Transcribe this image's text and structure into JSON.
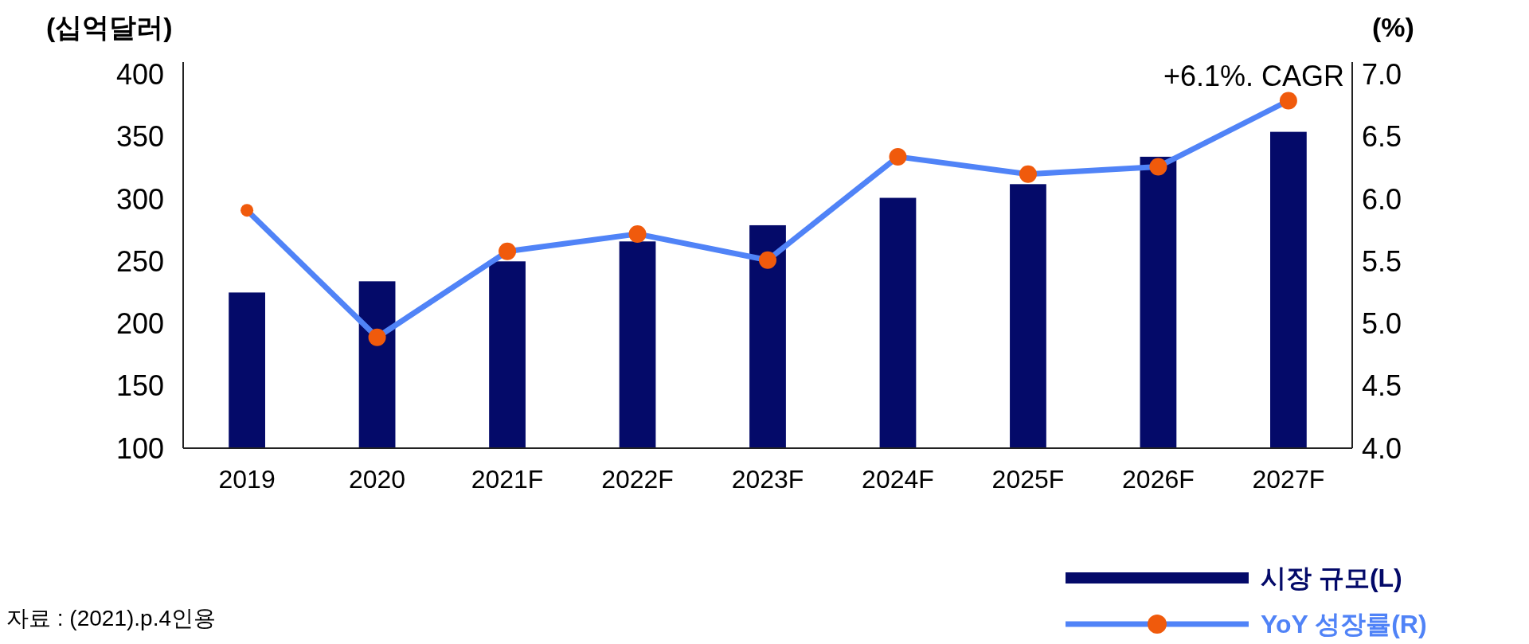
{
  "chart_data": {
    "type": "bar",
    "ylabel": "(십억달러)",
    "y2label": "(%)",
    "categories": [
      "2019",
      "2020",
      "2021F",
      "2022F",
      "2023F",
      "2024F",
      "2025F",
      "2026F",
      "2027F"
    ],
    "series": [
      {
        "name": "시장 규모(L)",
        "color": "#040a69",
        "values": [
          225,
          234,
          250,
          266,
          279,
          301,
          312,
          334,
          354
        ]
      },
      {
        "name": "YoY 성장률(R)",
        "type": "line",
        "axis": "y2",
        "color": "#5083f7",
        "marker": "circle",
        "values": [
          5.91,
          4.89,
          5.58,
          5.72,
          5.51,
          6.34,
          6.2,
          6.26,
          6.79
        ]
      }
    ],
    "ylim": [
      100,
      410
    ],
    "yticks": [
      100,
      150,
      200,
      250,
      300,
      350,
      400
    ],
    "y2lim": [
      4,
      7.1
    ],
    "y2ticks": [
      {
        "value": 4,
        "label": "4.0"
      },
      {
        "value": 4.5,
        "label": "4.5"
      },
      {
        "value": 5,
        "label": "5.0"
      },
      {
        "value": 5.5,
        "label": "5.5"
      },
      {
        "value": 6,
        "label": "6.0"
      },
      {
        "value": 6.5,
        "label": "6.5"
      },
      {
        "value": 7,
        "label": "7.0"
      }
    ],
    "legend": "bottom right",
    "annotations": [
      "+6.1%. CAGR",
      "자료 : (2021).p.4인용"
    ]
  }
}
